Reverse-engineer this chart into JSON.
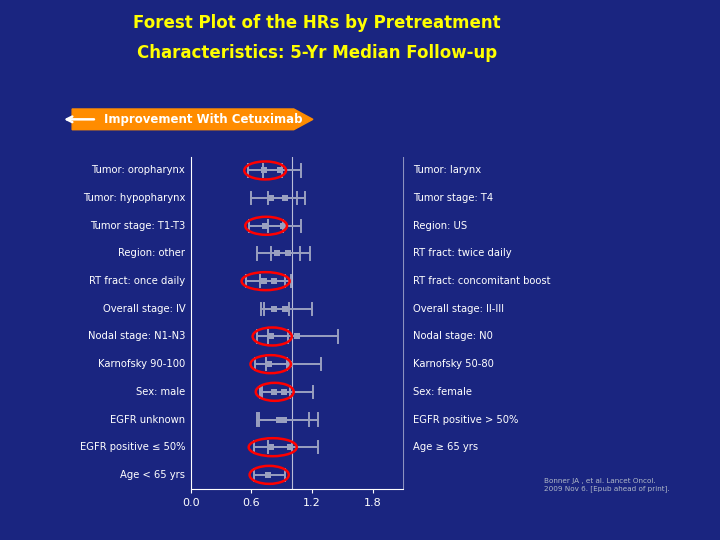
{
  "title_line1": "Forest Plot of the HRs by Pretreatment",
  "title_line2": "Characteristics: 5-Yr Median Follow-up",
  "title_color": "#FFFF00",
  "bg_color": "#1a2580",
  "arrow_label": "Improvement With Cetuximab",
  "arrow_color": "#FF8C00",
  "xlim": [
    0.0,
    2.1
  ],
  "xticks": [
    0.0,
    0.6,
    1.2,
    1.8
  ],
  "citation": "Bonner JA , et al. Lancet Oncol.\n2009 Nov 6. [Epub ahead of print].",
  "left_rows": [
    {
      "label": "Tumor: oropharynx",
      "hr": 0.72,
      "lo": 0.57,
      "hi": 0.9,
      "circled": true
    },
    {
      "label": "Tumor: hypopharynx",
      "hr": 0.79,
      "lo": 0.6,
      "hi": 1.05,
      "circled": false
    },
    {
      "label": "Tumor stage: T1-T3",
      "hr": 0.73,
      "lo": 0.58,
      "hi": 0.91,
      "circled": true
    },
    {
      "label": "Region: other",
      "hr": 0.85,
      "lo": 0.65,
      "hi": 1.08,
      "circled": false
    },
    {
      "label": "RT fract: once daily",
      "hr": 0.82,
      "lo": 0.68,
      "hi": 0.99,
      "circled": false
    },
    {
      "label": "Overall stage: IV",
      "hr": 0.82,
      "lo": 0.69,
      "hi": 0.97,
      "circled": false
    },
    {
      "label": "Nodal stage: N1-N3",
      "hr": 0.79,
      "lo": 0.65,
      "hi": 0.96,
      "circled": true
    },
    {
      "label": "Karnofsky 90-100",
      "hr": 0.77,
      "lo": 0.63,
      "hi": 0.95,
      "circled": true
    },
    {
      "label": "Sex: male",
      "hr": 0.82,
      "lo": 0.68,
      "hi": 0.98,
      "circled": true
    },
    {
      "label": "EGFR unknown",
      "hr": 0.87,
      "lo": 0.65,
      "hi": 1.17,
      "circled": false
    },
    {
      "label": "EGFR positive ≤ 50%",
      "hr": 0.79,
      "lo": 0.62,
      "hi": 1.0,
      "circled": true
    },
    {
      "label": "Age < 65 yrs",
      "hr": 0.76,
      "lo": 0.62,
      "hi": 0.93,
      "circled": true
    }
  ],
  "right_rows": [
    {
      "label": "Tumor: larynx",
      "hr": 0.88,
      "lo": 0.71,
      "hi": 1.09,
      "circled": false
    },
    {
      "label": "Tumor stage: T4",
      "hr": 0.93,
      "lo": 0.76,
      "hi": 1.13,
      "circled": false
    },
    {
      "label": "Region: US",
      "hr": 0.91,
      "lo": 0.76,
      "hi": 1.09,
      "circled": false
    },
    {
      "label": "RT fract: twice daily",
      "hr": 0.96,
      "lo": 0.79,
      "hi": 1.18,
      "circled": false
    },
    {
      "label": "RT fract: concomitant boost",
      "hr": 0.72,
      "lo": 0.55,
      "hi": 0.93,
      "circled": true
    },
    {
      "label": "Overall stage: II-III",
      "hr": 0.93,
      "lo": 0.72,
      "hi": 1.2,
      "circled": false
    },
    {
      "label": "Nodal stage: N0",
      "hr": 1.05,
      "lo": 0.76,
      "hi": 1.46,
      "circled": false
    },
    {
      "label": "Karnofsky 50-80",
      "hr": 0.98,
      "lo": 0.74,
      "hi": 1.29,
      "circled": false
    },
    {
      "label": "Sex: female",
      "hr": 0.92,
      "lo": 0.7,
      "hi": 1.21,
      "circled": false
    },
    {
      "label": "EGFR positive > 50%",
      "hr": 0.92,
      "lo": 0.67,
      "hi": 1.26,
      "circled": false
    },
    {
      "label": "Age ≥ 65 yrs",
      "hr": 0.98,
      "lo": 0.76,
      "hi": 1.26,
      "circled": false
    }
  ],
  "marker_color": "#9aa0c0",
  "ci_color": "#9aa0c0",
  "circle_color": "#ff0000",
  "text_color": "#ffffff",
  "ref_line_color": "#ffffff"
}
